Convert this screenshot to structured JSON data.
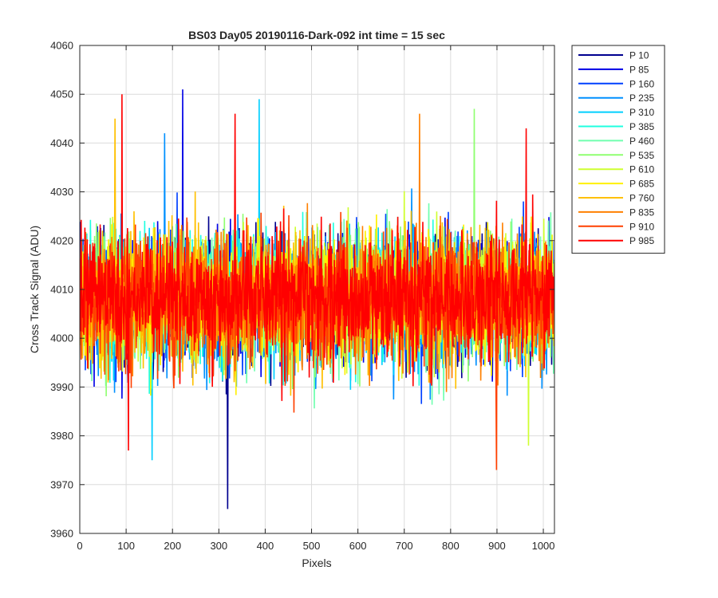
{
  "chart_data": {
    "type": "line",
    "title": "BS03 Day05 20190116-Dark-092 int time = 15 sec",
    "xlabel": "Pixels",
    "ylabel": "Cross Track Signal (ADU)",
    "xlim": [
      0,
      1024
    ],
    "ylim": [
      3960,
      4060
    ],
    "xticks": [
      "0",
      "100",
      "200",
      "300",
      "400",
      "500",
      "600",
      "700",
      "800",
      "900",
      "1000"
    ],
    "yticks": [
      "3960",
      "3970",
      "3980",
      "3990",
      "4000",
      "4010",
      "4020",
      "4030",
      "4040",
      "4050",
      "4060"
    ],
    "grid": true,
    "legend_position": "outside-top-right",
    "n_points_per_series": 1024,
    "series": [
      {
        "name": "P 10",
        "color": "#00008F"
      },
      {
        "name": "P 85",
        "color": "#0000E6"
      },
      {
        "name": "P 160",
        "color": "#0040FF"
      },
      {
        "name": "P 235",
        "color": "#0090FF"
      },
      {
        "name": "P 310",
        "color": "#00CFFF"
      },
      {
        "name": "P 385",
        "color": "#1FFFE0"
      },
      {
        "name": "P 460",
        "color": "#70FFAF"
      },
      {
        "name": "P 535",
        "color": "#8FFF70"
      },
      {
        "name": "P 610",
        "color": "#CFFF30"
      },
      {
        "name": "P 685",
        "color": "#FFF000"
      },
      {
        "name": "P 760",
        "color": "#FFC000"
      },
      {
        "name": "P 835",
        "color": "#FF8000"
      },
      {
        "name": "P 910",
        "color": "#FF4000"
      },
      {
        "name": "P 985",
        "color": "#FF0000"
      }
    ],
    "extremes": [
      {
        "series": "P 10",
        "x": 318,
        "y": 3965
      },
      {
        "series": "P 85",
        "x": 221,
        "y": 4051
      },
      {
        "series": "P 235",
        "x": 182,
        "y": 4042
      },
      {
        "series": "P 310",
        "x": 386,
        "y": 4049
      },
      {
        "series": "P 310",
        "x": 155,
        "y": 3975
      },
      {
        "series": "P 535",
        "x": 850,
        "y": 4047
      },
      {
        "series": "P 610",
        "x": 967,
        "y": 3978
      },
      {
        "series": "P 760",
        "x": 75,
        "y": 4045
      },
      {
        "series": "P 835",
        "x": 732,
        "y": 4046
      },
      {
        "series": "P 910",
        "x": 898,
        "y": 3973
      },
      {
        "series": "P 985",
        "x": 90,
        "y": 4050
      },
      {
        "series": "P 985",
        "x": 334,
        "y": 4046
      },
      {
        "series": "P 985",
        "x": 962,
        "y": 4043
      },
      {
        "series": "P 985",
        "x": 104,
        "y": 3977
      }
    ]
  }
}
